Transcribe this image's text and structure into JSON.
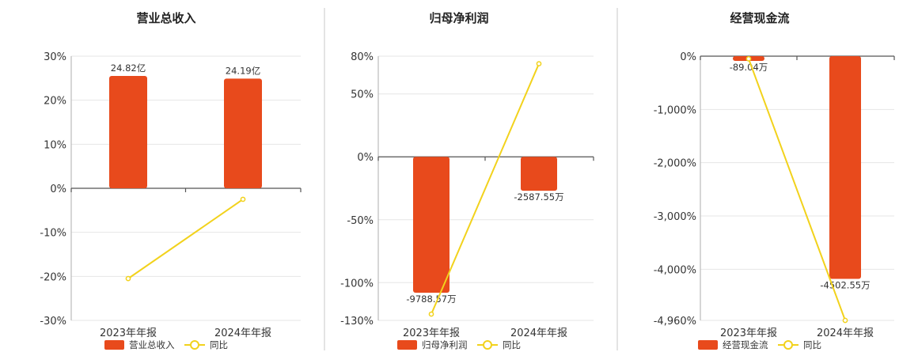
{
  "colors": {
    "bar": "#E84A1C",
    "line": "#F2D21C"
  },
  "chart_data": [
    {
      "type": "bar",
      "title": "营业总收入",
      "categories": [
        "2023年年报",
        "2024年年报"
      ],
      "yticks": [
        "30%",
        "20%",
        "10%",
        "0%",
        "-10%",
        "-20%",
        "-30%"
      ],
      "ylim": [
        -30,
        30
      ],
      "series": [
        {
          "name": "营业总收入",
          "kind": "bar",
          "values": [
            25.5,
            24.9
          ],
          "labels": [
            "24.82亿",
            "24.19亿"
          ]
        },
        {
          "name": "同比",
          "kind": "line",
          "values": [
            -20.5,
            -2.5
          ]
        }
      ]
    },
    {
      "type": "bar",
      "title": "归母净利润",
      "categories": [
        "2023年年报",
        "2024年年报"
      ],
      "yticks": [
        "80%",
        "50%",
        "0%",
        "-50%",
        "-100%",
        "-130%"
      ],
      "ylim": [
        -130,
        80
      ],
      "series": [
        {
          "name": "归母净利润",
          "kind": "bar",
          "values": [
            -108,
            -27
          ],
          "labels": [
            "-9788.57万",
            "-2587.55万"
          ]
        },
        {
          "name": "同比",
          "kind": "line",
          "values": [
            -125,
            74
          ]
        }
      ]
    },
    {
      "type": "bar",
      "title": "经营现金流",
      "categories": [
        "2023年年报",
        "2024年年报"
      ],
      "yticks": [
        "0%",
        "-1,000%",
        "-2,000%",
        "-3,000%",
        "-4,000%",
        "-4,960%"
      ],
      "yvalues": [
        0,
        -1000,
        -2000,
        -3000,
        -4000,
        -4960
      ],
      "ylim": [
        -4960,
        0
      ],
      "series": [
        {
          "name": "经营现金流",
          "kind": "bar",
          "values": [
            -90,
            -4180
          ],
          "labels": [
            "-89.04万",
            "-4502.55万"
          ]
        },
        {
          "name": "同比",
          "kind": "line",
          "values": [
            -50,
            -4960
          ]
        }
      ]
    }
  ]
}
